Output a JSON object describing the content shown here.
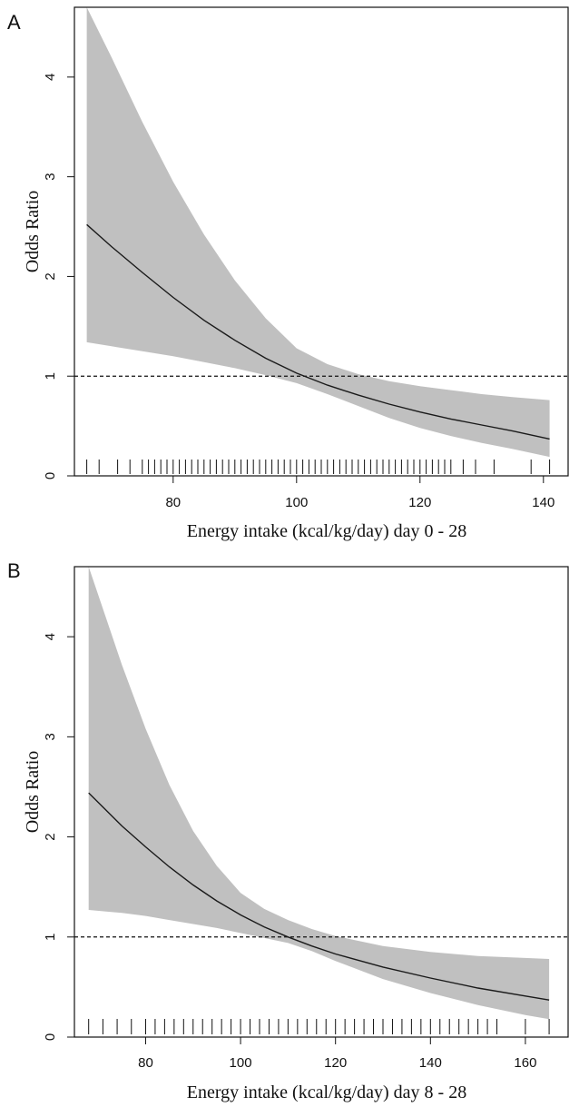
{
  "chart_data": [
    {
      "type": "line",
      "panel_label": "A",
      "xlabel": "Energy intake (kcal/kg/day) day 0 - 28",
      "ylabel": "Odds Ratio",
      "xlim": [
        64,
        144
      ],
      "ylim": [
        0,
        4.7
      ],
      "xticks": [
        80,
        100,
        120,
        140
      ],
      "yticks": [
        0,
        1,
        2,
        3,
        4
      ],
      "reference_line_y": 1,
      "grid": false,
      "legend": "none",
      "band_color": "#c0c0c0",
      "line_color": "#1a1a1a",
      "series": [
        {
          "x": [
            66,
            70,
            75,
            80,
            85,
            90,
            95,
            100,
            105,
            110,
            115,
            120,
            125,
            130,
            135,
            141
          ],
          "y": [
            2.52,
            2.3,
            2.04,
            1.79,
            1.56,
            1.36,
            1.18,
            1.03,
            0.91,
            0.81,
            0.72,
            0.64,
            0.57,
            0.51,
            0.45,
            0.37
          ],
          "lower": [
            1.34,
            1.3,
            1.25,
            1.2,
            1.14,
            1.08,
            1.01,
            0.93,
            0.82,
            0.7,
            0.58,
            0.48,
            0.4,
            0.33,
            0.27,
            0.19
          ],
          "upper": [
            4.72,
            4.2,
            3.55,
            2.95,
            2.42,
            1.96,
            1.58,
            1.28,
            1.12,
            1.02,
            0.95,
            0.9,
            0.86,
            0.82,
            0.79,
            0.76
          ]
        }
      ],
      "rug_x": [
        66,
        68,
        71,
        73,
        75,
        76,
        77,
        78,
        79,
        80,
        81,
        82,
        83,
        84,
        85,
        86,
        87,
        88,
        89,
        90,
        91,
        92,
        93,
        94,
        95,
        96,
        97,
        98,
        99,
        100,
        101,
        102,
        103,
        104,
        105,
        106,
        107,
        108,
        109,
        110,
        111,
        112,
        113,
        114,
        115,
        116,
        117,
        118,
        119,
        120,
        121,
        122,
        123,
        124,
        125,
        127,
        129,
        132,
        138,
        141
      ]
    },
    {
      "type": "line",
      "panel_label": "B",
      "xlabel": "Energy intake (kcal/kg/day) day 8 - 28",
      "ylabel": "Odds Ratio",
      "xlim": [
        65,
        169
      ],
      "ylim": [
        0,
        4.7
      ],
      "xticks": [
        80,
        100,
        120,
        140,
        160
      ],
      "yticks": [
        0,
        1,
        2,
        3,
        4
      ],
      "reference_line_y": 1,
      "grid": false,
      "legend": "none",
      "band_color": "#c0c0c0",
      "line_color": "#1a1a1a",
      "series": [
        {
          "x": [
            68,
            75,
            80,
            85,
            90,
            95,
            100,
            105,
            110,
            115,
            120,
            130,
            140,
            150,
            160,
            165
          ],
          "y": [
            2.44,
            2.11,
            1.9,
            1.7,
            1.52,
            1.36,
            1.22,
            1.1,
            1.0,
            0.91,
            0.83,
            0.7,
            0.59,
            0.49,
            0.41,
            0.37
          ],
          "lower": [
            1.27,
            1.24,
            1.21,
            1.17,
            1.13,
            1.09,
            1.04,
            0.99,
            0.94,
            0.86,
            0.76,
            0.58,
            0.44,
            0.32,
            0.22,
            0.18
          ],
          "upper": [
            4.72,
            3.72,
            3.08,
            2.52,
            2.06,
            1.71,
            1.44,
            1.28,
            1.17,
            1.08,
            1.01,
            0.91,
            0.85,
            0.81,
            0.79,
            0.78
          ]
        }
      ],
      "rug_x": [
        68,
        71,
        74,
        77,
        80,
        82,
        84,
        86,
        88,
        90,
        92,
        94,
        96,
        98,
        100,
        102,
        104,
        106,
        108,
        110,
        112,
        114,
        116,
        118,
        120,
        122,
        124,
        126,
        128,
        130,
        132,
        134,
        136,
        138,
        140,
        142,
        144,
        146,
        148,
        150,
        152,
        154,
        160,
        165
      ]
    }
  ]
}
